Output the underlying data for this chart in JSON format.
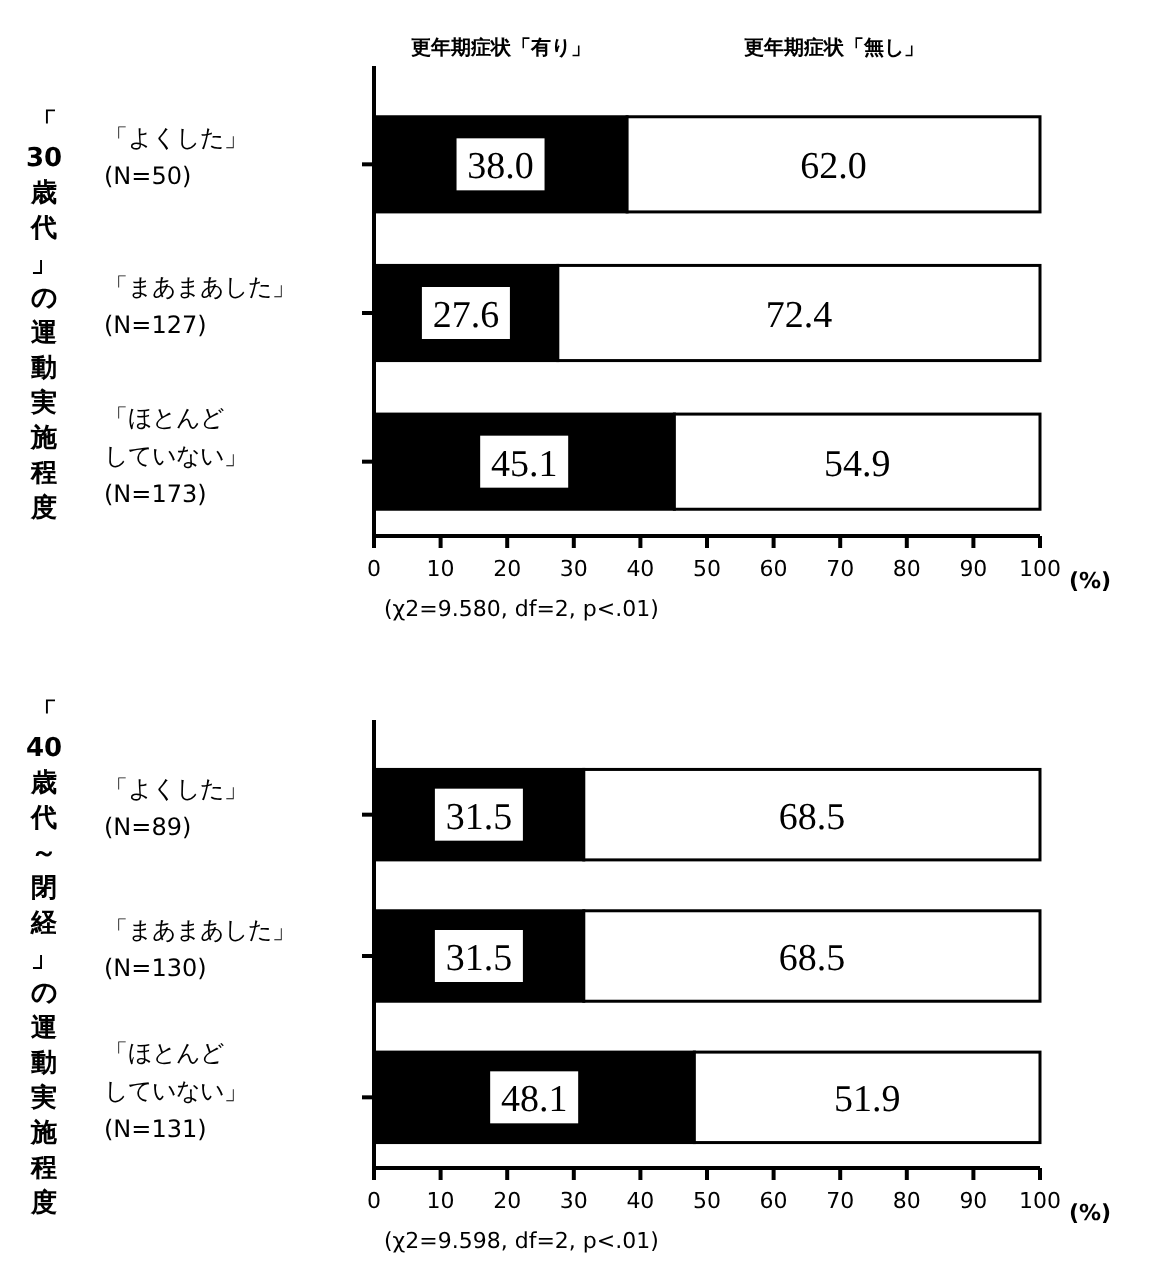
{
  "chart_data": [
    {
      "type": "bar",
      "orientation": "horizontal",
      "stacked": true,
      "legend": "top",
      "ylabel": "「30歳代」の運動実施程度",
      "xlabel": "(%)",
      "categories": [
        "「よくした」\n(N=50)",
        "「まあまあした」\n(N=127)",
        "「ほとんどしていない」\n(N=173)"
      ],
      "series": [
        {
          "name": "更年期症状「有り」",
          "color": "#000000",
          "values": [
            38.0,
            27.6,
            45.1
          ],
          "value_labels": [
            "38.0",
            "27.6",
            "45.1"
          ]
        },
        {
          "name": "更年期症状「無し」",
          "color": "#ffffff",
          "values": [
            62.0,
            72.4,
            54.9
          ],
          "value_labels": [
            "62.0",
            "72.4",
            "54.9"
          ]
        }
      ],
      "xlim": [
        0,
        100
      ],
      "xticks": [
        0,
        10,
        20,
        30,
        40,
        50,
        60,
        70,
        80,
        90,
        100
      ],
      "annotations": [
        "(χ2=9.580, df=2, p<.01)"
      ]
    },
    {
      "type": "bar",
      "orientation": "horizontal",
      "stacked": true,
      "ylabel": "「40歳代～閉経」の運動実施程度",
      "xlabel": "(%)",
      "categories": [
        "「よくした」\n(N=89)",
        "「まあまあした」\n(N=130)",
        "「ほとんどしていない」\n(N=131)"
      ],
      "series": [
        {
          "color": "#000000",
          "values": [
            31.5,
            31.5,
            48.1
          ],
          "value_labels": [
            "31.5",
            "31.5",
            "48.1"
          ]
        },
        {
          "color": "#ffffff",
          "values": [
            68.5,
            68.5,
            51.9
          ],
          "value_labels": [
            "68.5",
            "68.5",
            "51.9"
          ]
        }
      ],
      "xlim": [
        0,
        100
      ],
      "xticks": [
        0,
        10,
        20,
        30,
        40,
        50,
        60,
        70,
        80,
        90,
        100
      ],
      "annotations": [
        "(χ2=9.598, df=2, p<.01)"
      ]
    }
  ]
}
